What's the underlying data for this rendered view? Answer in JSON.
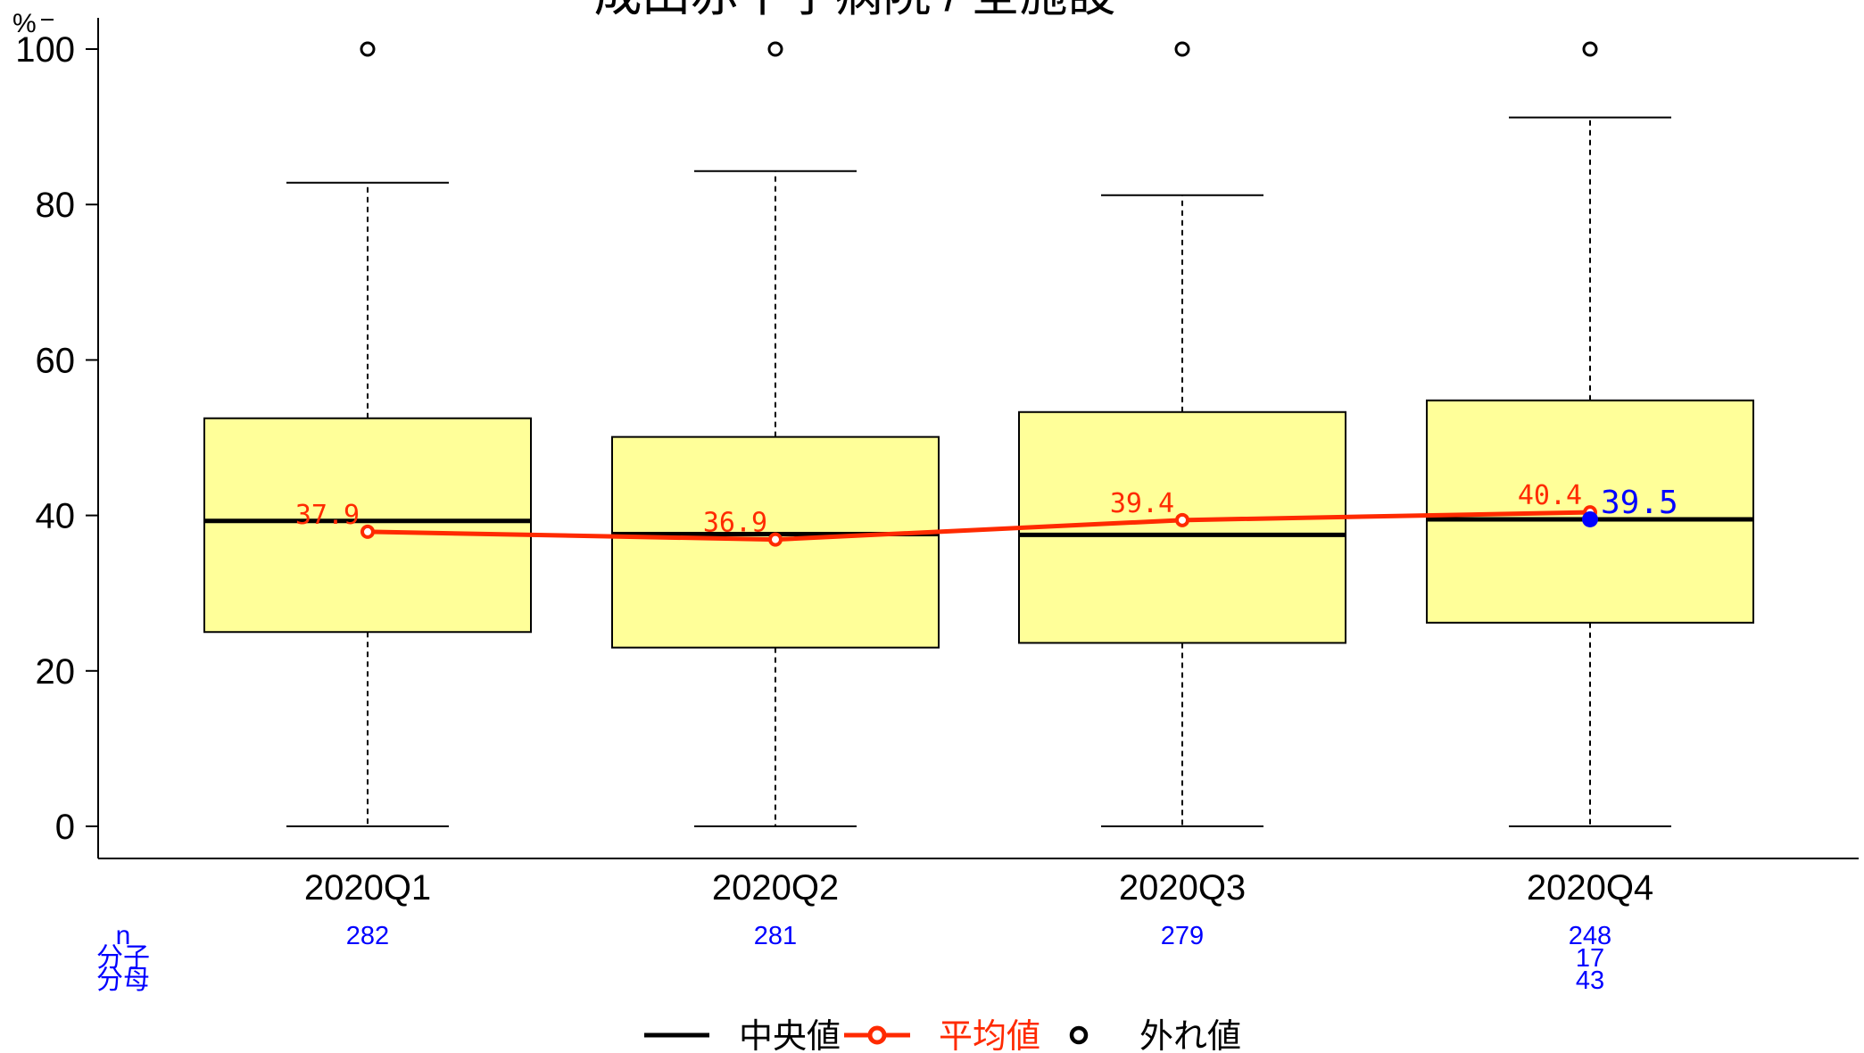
{
  "chart_data": {
    "type": "box",
    "title": "成田赤十字病院 / 全施設",
    "ylabel": "%",
    "ylim": [
      0,
      100
    ],
    "yticks": [
      "0",
      "20",
      "40",
      "60",
      "80",
      "100"
    ],
    "categories": [
      "2020Q1",
      "2020Q2",
      "2020Q3",
      "2020Q4"
    ],
    "boxes": [
      {
        "q1": 25.0,
        "median": 39.3,
        "q3": 52.5,
        "whisker_low": 0,
        "whisker_high": 82.8,
        "outliers": [
          100
        ]
      },
      {
        "q1": 23.0,
        "median": 37.6,
        "q3": 50.1,
        "whisker_low": 0,
        "whisker_high": 84.3,
        "outliers": [
          100
        ]
      },
      {
        "q1": 23.6,
        "median": 37.5,
        "q3": 53.3,
        "whisker_low": 0,
        "whisker_high": 81.2,
        "outliers": [
          100
        ]
      },
      {
        "q1": 26.2,
        "median": 39.5,
        "q3": 54.8,
        "whisker_low": 0,
        "whisker_high": 91.2,
        "outliers": [
          100
        ]
      }
    ],
    "means": [
      37.9,
      36.9,
      39.4,
      40.4
    ],
    "mean_labels": [
      "37.9",
      "36.9",
      "39.4",
      "40.4"
    ],
    "highlight": {
      "category": "2020Q4",
      "value": 39.5,
      "label": "39.5"
    },
    "counts": {
      "row_labels": [
        "n",
        "分子",
        "分母"
      ],
      "n": [
        "282",
        "281",
        "279",
        "248"
      ],
      "numerator": [
        "",
        "",
        "",
        "17"
      ],
      "denominator": [
        "",
        "",
        "",
        "43"
      ]
    },
    "legend": {
      "median": "中央値",
      "mean": "平均値",
      "outlier": "外れ値",
      "placement": "bottom-center"
    },
    "colors": {
      "box_fill": "#ffff99",
      "mean_line": "#ff2a00",
      "highlight": "#0000ff",
      "counts": "#0000ff"
    }
  }
}
